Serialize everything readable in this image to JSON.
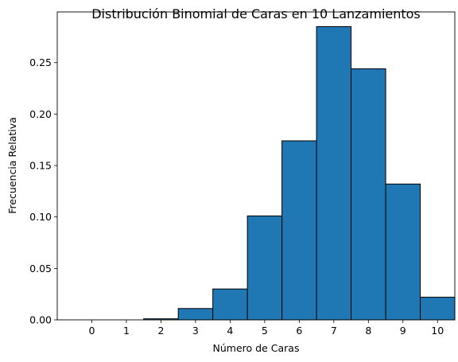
{
  "chart_data": {
    "type": "bar",
    "title": "Distribución Binomial de Caras en 10 Lanzamientos",
    "xlabel": "Número de Caras",
    "ylabel": "Frecuencia Relativa",
    "categories": [
      "0",
      "1",
      "2",
      "3",
      "4",
      "5",
      "6",
      "7",
      "8",
      "9",
      "10"
    ],
    "x": [
      0,
      1,
      2,
      3,
      4,
      5,
      6,
      7,
      8,
      9,
      10
    ],
    "values": [
      0.0,
      0.0,
      0.001,
      0.011,
      0.03,
      0.101,
      0.174,
      0.285,
      0.244,
      0.132,
      0.022
    ],
    "yticks": [
      "0.00",
      "0.05",
      "0.10",
      "0.15",
      "0.20",
      "0.25"
    ],
    "ytick_values": [
      0.0,
      0.05,
      0.1,
      0.15,
      0.2,
      0.25
    ],
    "xlim": [
      -1.0,
      10.5
    ],
    "ylim": [
      0,
      0.2993
    ],
    "bar_color": "#1f77b4",
    "edge_color": "#000000",
    "grid": false,
    "legend": "none"
  }
}
